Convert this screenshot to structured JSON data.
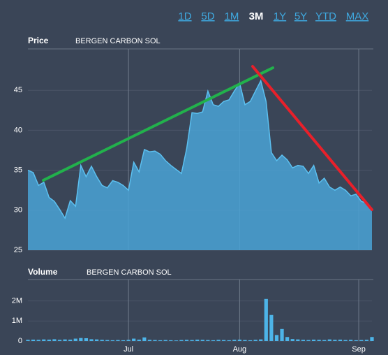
{
  "range_buttons": [
    "1D",
    "5D",
    "1M",
    "3M",
    "1Y",
    "5Y",
    "YTD",
    "MAX"
  ],
  "active": "3M",
  "chart_data": [
    {
      "type": "area",
      "title": "Price",
      "subtitle": "BERGEN CARBON SOL",
      "color": "#4aa3d6",
      "values": [
        35.0,
        34.7,
        33.1,
        33.5,
        31.6,
        31.1,
        30.1,
        29.0,
        31.2,
        30.5,
        35.6,
        34.2,
        35.5,
        34.2,
        33.1,
        32.8,
        33.7,
        33.5,
        33.1,
        32.5,
        36.0,
        34.8,
        37.6,
        37.3,
        37.4,
        37.0,
        36.2,
        35.6,
        35.1,
        34.6,
        37.7,
        42.2,
        42.1,
        42.3,
        44.9,
        43.2,
        43.0,
        43.6,
        43.8,
        44.9,
        45.9,
        43.2,
        43.6,
        44.9,
        46.2,
        43.6,
        37.2,
        36.2,
        36.9,
        36.3,
        35.3,
        35.6,
        35.5,
        34.6,
        35.6,
        33.4,
        34.0,
        32.9,
        32.5,
        32.9,
        32.5,
        31.8,
        32.0,
        31.1,
        30.9,
        30.2
      ],
      "xlim": [
        0,
        65
      ],
      "ylim": [
        25,
        50
      ],
      "yticks": [
        25,
        30,
        35,
        40,
        45
      ],
      "grid": true
    },
    {
      "type": "bar",
      "title": "Volume",
      "subtitle": "BERGEN CARBON SOL",
      "color": "#4db4e8",
      "values": [
        60000,
        70000,
        60000,
        80000,
        70000,
        90000,
        60000,
        80000,
        70000,
        120000,
        150000,
        140000,
        90000,
        80000,
        60000,
        50000,
        40000,
        50000,
        40000,
        60000,
        120000,
        70000,
        180000,
        60000,
        50000,
        40000,
        50000,
        40000,
        30000,
        50000,
        60000,
        50000,
        70000,
        60000,
        50000,
        40000,
        60000,
        50000,
        40000,
        60000,
        70000,
        50000,
        40000,
        60000,
        80000,
        2100000,
        1300000,
        300000,
        600000,
        200000,
        100000,
        80000,
        60000,
        50000,
        70000,
        60000,
        50000,
        80000,
        60000,
        70000,
        50000,
        60000,
        40000,
        50000,
        60000,
        200000
      ],
      "xlim": [
        0,
        65
      ],
      "xticks": [
        {
          "value": 19,
          "label": "Jul"
        },
        {
          "value": 40,
          "label": "Aug"
        },
        {
          "value": 62.5,
          "label": "Sep"
        }
      ],
      "ylim": [
        0,
        3000000
      ],
      "yticks": [
        0,
        {
          "value": 1000000,
          "label": "1M"
        },
        {
          "value": 2000000,
          "label": "2M"
        }
      ],
      "grid": true
    }
  ]
}
